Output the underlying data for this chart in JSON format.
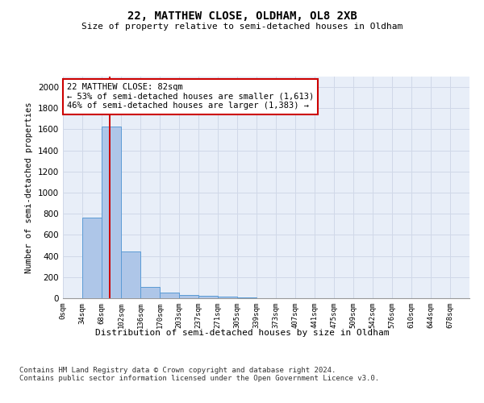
{
  "title": "22, MATTHEW CLOSE, OLDHAM, OL8 2XB",
  "subtitle": "Size of property relative to semi-detached houses in Oldham",
  "xlabel": "Distribution of semi-detached houses by size in Oldham",
  "ylabel": "Number of semi-detached properties",
  "bar_labels": [
    "0sqm",
    "34sqm",
    "68sqm",
    "102sqm",
    "136sqm",
    "170sqm",
    "203sqm",
    "237sqm",
    "271sqm",
    "305sqm",
    "339sqm",
    "373sqm",
    "407sqm",
    "441sqm",
    "475sqm",
    "509sqm",
    "542sqm",
    "576sqm",
    "610sqm",
    "644sqm",
    "678sqm"
  ],
  "bar_values": [
    0,
    760,
    1630,
    440,
    110,
    50,
    30,
    20,
    15,
    10,
    0,
    0,
    0,
    0,
    0,
    0,
    0,
    0,
    0,
    0,
    0
  ],
  "bar_color": "#aec6e8",
  "bar_edge_color": "#5b9bd5",
  "annotation_text": "22 MATTHEW CLOSE: 82sqm\n← 53% of semi-detached houses are smaller (1,613)\n46% of semi-detached houses are larger (1,383) →",
  "annotation_box_color": "#ffffff",
  "annotation_box_edge": "#cc0000",
  "vline_x": 82,
  "vline_color": "#cc0000",
  "ylim": [
    0,
    2100
  ],
  "yticks": [
    0,
    200,
    400,
    600,
    800,
    1000,
    1200,
    1400,
    1600,
    1800,
    2000
  ],
  "grid_color": "#d0d8e8",
  "background_color": "#e8eef8",
  "footer_text": "Contains HM Land Registry data © Crown copyright and database right 2024.\nContains public sector information licensed under the Open Government Licence v3.0.",
  "bin_width": 34
}
